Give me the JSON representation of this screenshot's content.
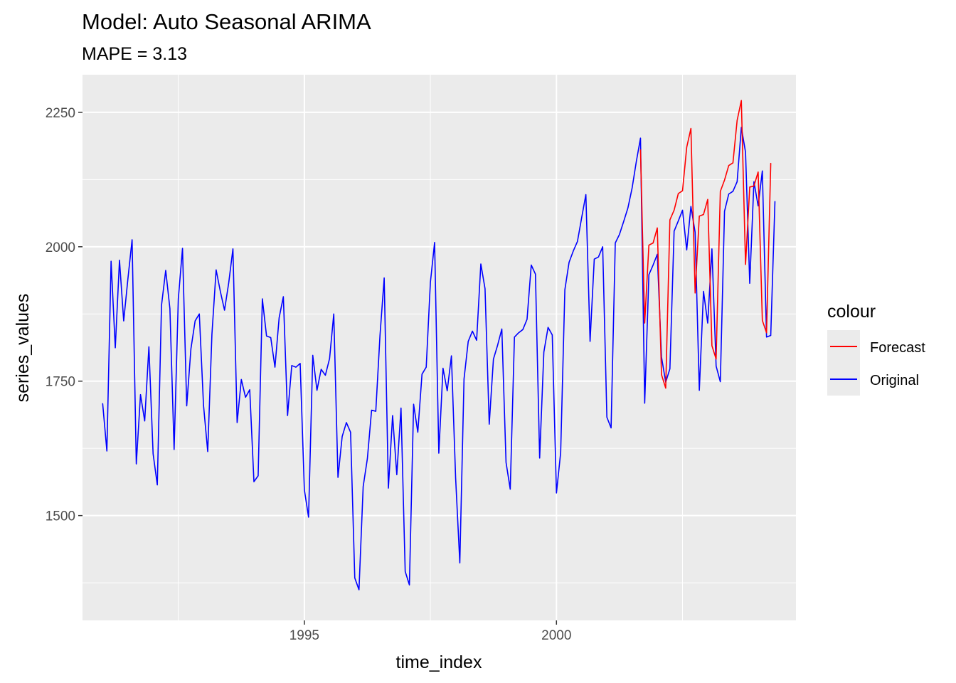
{
  "chart_data": {
    "type": "line",
    "title": "Model:  Auto Seasonal ARIMA",
    "subtitle": "MAPE = 3.13",
    "xlabel": "time_index",
    "ylabel": "series_values",
    "xlim": [
      1990.6,
      2004.75
    ],
    "ylim": [
      1305,
      2320
    ],
    "x_ticks": [
      1995,
      2000
    ],
    "x_tick_labels": [
      "1995",
      "2000"
    ],
    "y_ticks": [
      1500,
      1750,
      2000,
      2250
    ],
    "y_tick_labels": [
      "1500",
      "1750",
      "2000",
      "2250"
    ],
    "grid": true,
    "legend": {
      "title": "colour",
      "position": "right",
      "entries": [
        {
          "label": "Forecast",
          "color": "#ff0000"
        },
        {
          "label": "Original",
          "color": "#0000ff"
        }
      ]
    },
    "series": [
      {
        "name": "Original",
        "color": "#0000ff",
        "x_start": 1991.0,
        "x_step": 0.083333,
        "values": [
          1708,
          1620,
          1973,
          1812,
          1975,
          1862,
          1940,
          2013,
          1596,
          1725,
          1676,
          1814,
          1615,
          1557,
          1891,
          1956,
          1885,
          1623,
          1903,
          1997,
          1704,
          1810,
          1862,
          1875,
          1705,
          1619,
          1837,
          1957,
          1917,
          1882,
          1933,
          1996,
          1673,
          1753,
          1720,
          1734,
          1563,
          1574,
          1903,
          1834,
          1831,
          1776,
          1868,
          1907,
          1686,
          1779,
          1776,
          1783,
          1548,
          1497,
          1798,
          1733,
          1772,
          1761,
          1792,
          1875,
          1571,
          1647,
          1673,
          1655,
          1384,
          1362,
          1554,
          1606,
          1696,
          1694,
          1835,
          1942,
          1551,
          1686,
          1576,
          1700,
          1396,
          1371,
          1707,
          1655,
          1763,
          1776,
          1934,
          2008,
          1616,
          1774,
          1732,
          1797,
          1570,
          1412,
          1754,
          1824,
          1843,
          1826,
          1968,
          1922,
          1670,
          1791,
          1817,
          1847,
          1599,
          1549,
          1832,
          1840,
          1846,
          1865,
          1966,
          1949,
          1607,
          1804,
          1850,
          1836,
          1542,
          1617,
          1920,
          1971,
          1992,
          2010,
          2054,
          2097,
          1824,
          1977,
          1981,
          2000,
          1683,
          1663,
          2007,
          2023,
          2047,
          2072,
          2109,
          2158,
          2202,
          1709,
          1948,
          1966,
          1986,
          1795,
          1748,
          1773,
          2029,
          2048,
          2068,
          1994,
          2075,
          2027,
          1733,
          1917,
          1858,
          1996,
          1778,
          1749,
          2066,
          2098,
          2103,
          2121,
          2222,
          2176,
          1932,
          2121,
          2076,
          2141,
          1832,
          1835,
          2084
        ]
      },
      {
        "name": "Forecast",
        "color": "#ff0000",
        "x_start": 2001.6667,
        "x_step": 0.083333,
        "values": [
          2180,
          1858,
          2003,
          2007,
          2035,
          1762,
          1737,
          2050,
          2068,
          2099,
          2104,
          2185,
          2220,
          1914,
          2057,
          2060,
          2088,
          1816,
          1791,
          2103,
          2124,
          2151,
          2156,
          2235,
          2272,
          1967,
          2111,
          2113,
          2139,
          1863,
          1840,
          2155
        ]
      }
    ]
  }
}
